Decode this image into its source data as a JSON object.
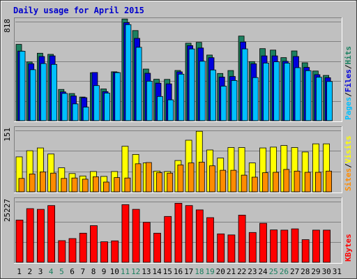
{
  "colors": {
    "background": "#c0c0c0",
    "frame": "#808080",
    "plot_bg": "#c0c0c0",
    "gridline": "#808080",
    "title": "#0000cc",
    "hits": "#1c8060",
    "files": "#0000dd",
    "pages": "#00bfff",
    "visits": "#ffff00",
    "sites": "#ff8c00",
    "kbytes": "#ff0000",
    "weekend_label": "#1c8060",
    "weekday_label": "#000000"
  },
  "chart_data": [
    {
      "type": "bar",
      "panel": "top",
      "title": "Daily usage for April 2015",
      "ymax_label": "818",
      "legend": [
        {
          "name": "Pages",
          "color": "#00bfff"
        },
        {
          "sep": "/"
        },
        {
          "name": "Files",
          "color": "#0000dd"
        },
        {
          "sep": "/"
        },
        {
          "name": "Hits",
          "color": "#1c8060"
        }
      ],
      "categories": [
        "1",
        "2",
        "3",
        "4",
        "5",
        "6",
        "7",
        "8",
        "9",
        "10",
        "11",
        "12",
        "13",
        "14",
        "15",
        "16",
        "17",
        "18",
        "19",
        "20",
        "21",
        "22",
        "23",
        "24",
        "25",
        "26",
        "27",
        "28",
        "29",
        "30",
        "31"
      ],
      "weekend_days": [
        "4",
        "5",
        "11",
        "12",
        "18",
        "19",
        "25",
        "26"
      ],
      "ylim": [
        0,
        818
      ],
      "series": [
        {
          "name": "Hits",
          "values": [
            630,
            485,
            557,
            548,
            258,
            224,
            195,
            396,
            262,
            404,
            840,
            744,
            426,
            342,
            341,
            415,
            640,
            647,
            542,
            390,
            414,
            699,
            488,
            595,
            583,
            521,
            576,
            478,
            410,
            374,
            0
          ]
        },
        {
          "name": "Files",
          "values": [
            575,
            470,
            530,
            535,
            238,
            204,
            190,
            398,
            240,
            400,
            810,
            680,
            392,
            310,
            304,
            403,
            620,
            600,
            520,
            360,
            365,
            650,
            470,
            535,
            535,
            490,
            530,
            440,
            380,
            355,
            0
          ]
        },
        {
          "name": "Pages",
          "values": [
            574,
            421,
            472,
            465,
            225,
            139,
            112,
            290,
            228,
            397,
            793,
            606,
            326,
            200,
            172,
            384,
            592,
            491,
            419,
            285,
            332,
            593,
            356,
            476,
            486,
            475,
            438,
            413,
            359,
            324,
            0
          ]
        }
      ]
    },
    {
      "type": "bar",
      "panel": "middle",
      "ymax_label": "151",
      "legend": [
        {
          "name": "Sites",
          "color": "#ff8c00"
        },
        {
          "sep": "/"
        },
        {
          "name": "Visits",
          "color": "#ffff00"
        }
      ],
      "categories": [
        "1",
        "2",
        "3",
        "4",
        "5",
        "6",
        "7",
        "8",
        "9",
        "10",
        "11",
        "12",
        "13",
        "14",
        "15",
        "16",
        "17",
        "18",
        "19",
        "20",
        "21",
        "22",
        "23",
        "24",
        "25",
        "26",
        "27",
        "28",
        "29",
        "30",
        "31"
      ],
      "ylim": [
        0,
        151
      ],
      "series": [
        {
          "name": "Visits",
          "values": [
            86,
            101,
            108,
            93,
            59,
            45,
            39,
            50,
            38,
            50,
            112,
            92,
            71,
            51,
            50,
            77,
            127,
            149,
            103,
            83,
            109,
            109,
            71,
            108,
            110,
            114,
            109,
            98,
            118,
            118,
            0
          ]
        },
        {
          "name": "Sites",
          "values": [
            33,
            44,
            49,
            46,
            33,
            34,
            31,
            37,
            24,
            35,
            34,
            69,
            72,
            47,
            46,
            66,
            71,
            73,
            64,
            53,
            53,
            41,
            36,
            47,
            48,
            55,
            51,
            48,
            48,
            51,
            0
          ]
        }
      ]
    },
    {
      "type": "bar",
      "panel": "bottom",
      "ymax_label": "25227",
      "legend": [
        {
          "name": "KBytes",
          "color": "#ff0000"
        }
      ],
      "categories": [
        "1",
        "2",
        "3",
        "4",
        "5",
        "6",
        "7",
        "8",
        "9",
        "10",
        "11",
        "12",
        "13",
        "14",
        "15",
        "16",
        "17",
        "18",
        "19",
        "20",
        "21",
        "22",
        "23",
        "24",
        "25",
        "26",
        "27",
        "28",
        "29",
        "30",
        "31"
      ],
      "ylim": [
        0,
        25227
      ],
      "series": [
        {
          "name": "KBytes",
          "values": [
            17553,
            22288,
            22009,
            23563,
            8987,
            9846,
            12087,
            15209,
            8512,
            8901,
            23945,
            22009,
            16622,
            12087,
            19050,
            24545,
            23562,
            21767,
            18567,
            11807,
            11368,
            19600,
            12368,
            16200,
            13460,
            13380,
            13880,
            9386,
            13380,
            13380,
            0
          ]
        }
      ]
    }
  ]
}
